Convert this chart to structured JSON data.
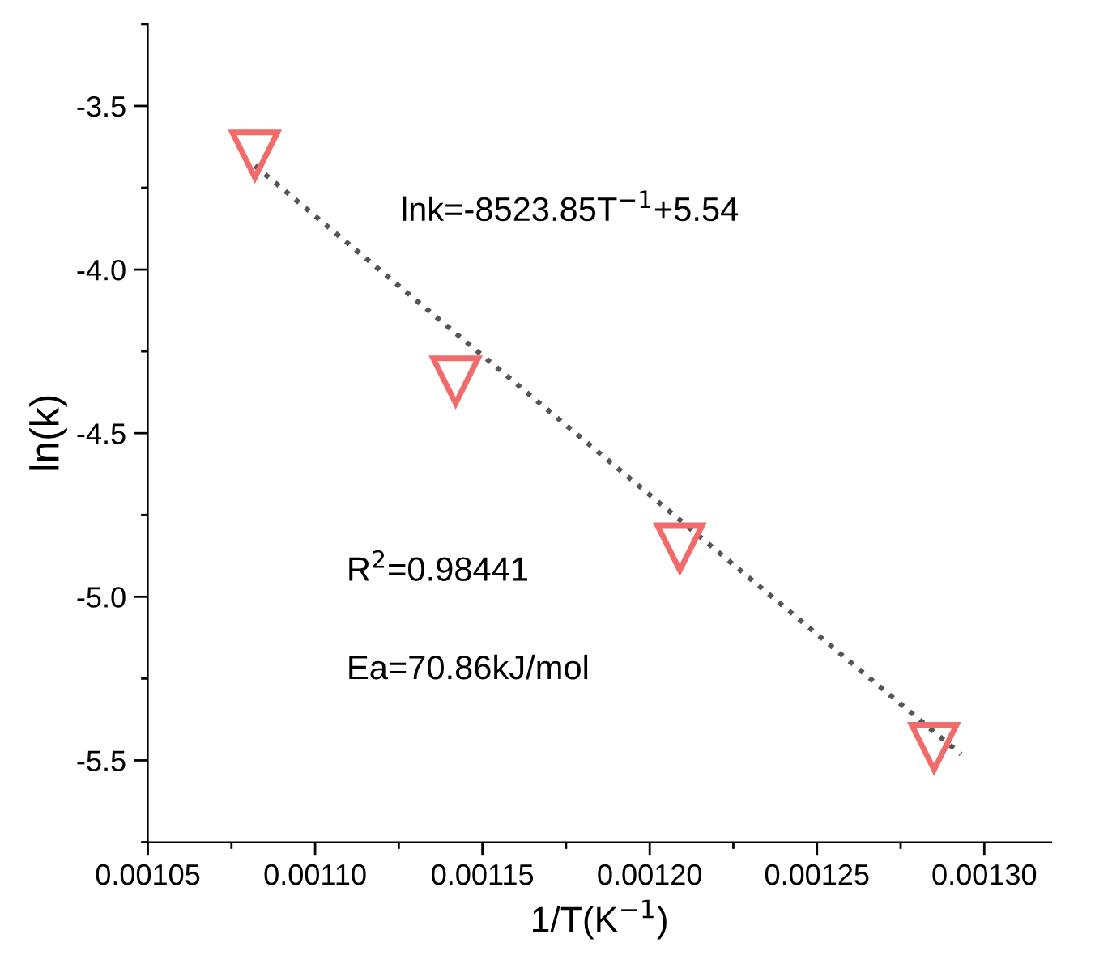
{
  "chart_data": {
    "type": "scatter",
    "xlabel": "1/T(K$^{−1}$)",
    "ylabel": "ln(k)",
    "xlim": [
      0.00105,
      0.00132
    ],
    "xticks": [
      {
        "value": 0.00105,
        "label": "0.00105"
      },
      {
        "value": 0.0011,
        "label": "0.00110"
      },
      {
        "value": 0.00115,
        "label": "0.00115"
      },
      {
        "value": 0.0012,
        "label": "0.00120"
      },
      {
        "value": 0.00125,
        "label": "0.00125"
      },
      {
        "value": 0.0013,
        "label": "0.00130"
      }
    ],
    "ylim": [
      -5.75,
      -3.25
    ],
    "yticks": [
      {
        "value": -3.5,
        "label": "-3.5"
      },
      {
        "value": -4.0,
        "label": "-4.0"
      },
      {
        "value": -4.5,
        "label": "-4.5"
      },
      {
        "value": -5.0,
        "label": "-5.0"
      },
      {
        "value": -5.5,
        "label": "-5.5"
      }
    ],
    "grid": false,
    "legend": false,
    "series": [
      {
        "color": "#f26b6b",
        "marker": "triangle",
        "x": [
          0.001082,
          0.001142,
          0.001209,
          0.001285
        ],
        "values": [
          -3.65,
          -4.34,
          -4.85,
          -5.46
        ]
      },
      {
        "type": "line",
        "color": "#555555",
        "line_style": "dotted",
        "marker": "none",
        "x": [
          0.001082,
          0.001293
        ],
        "values": [
          -3.683,
          -5.481
        ]
      }
    ],
    "annotations": [
      "lnk=-8523.85T$^{−1}$+5.54",
      "R$^{2}$=0.98441",
      "Ea=70.86kJ/mol"
    ]
  }
}
